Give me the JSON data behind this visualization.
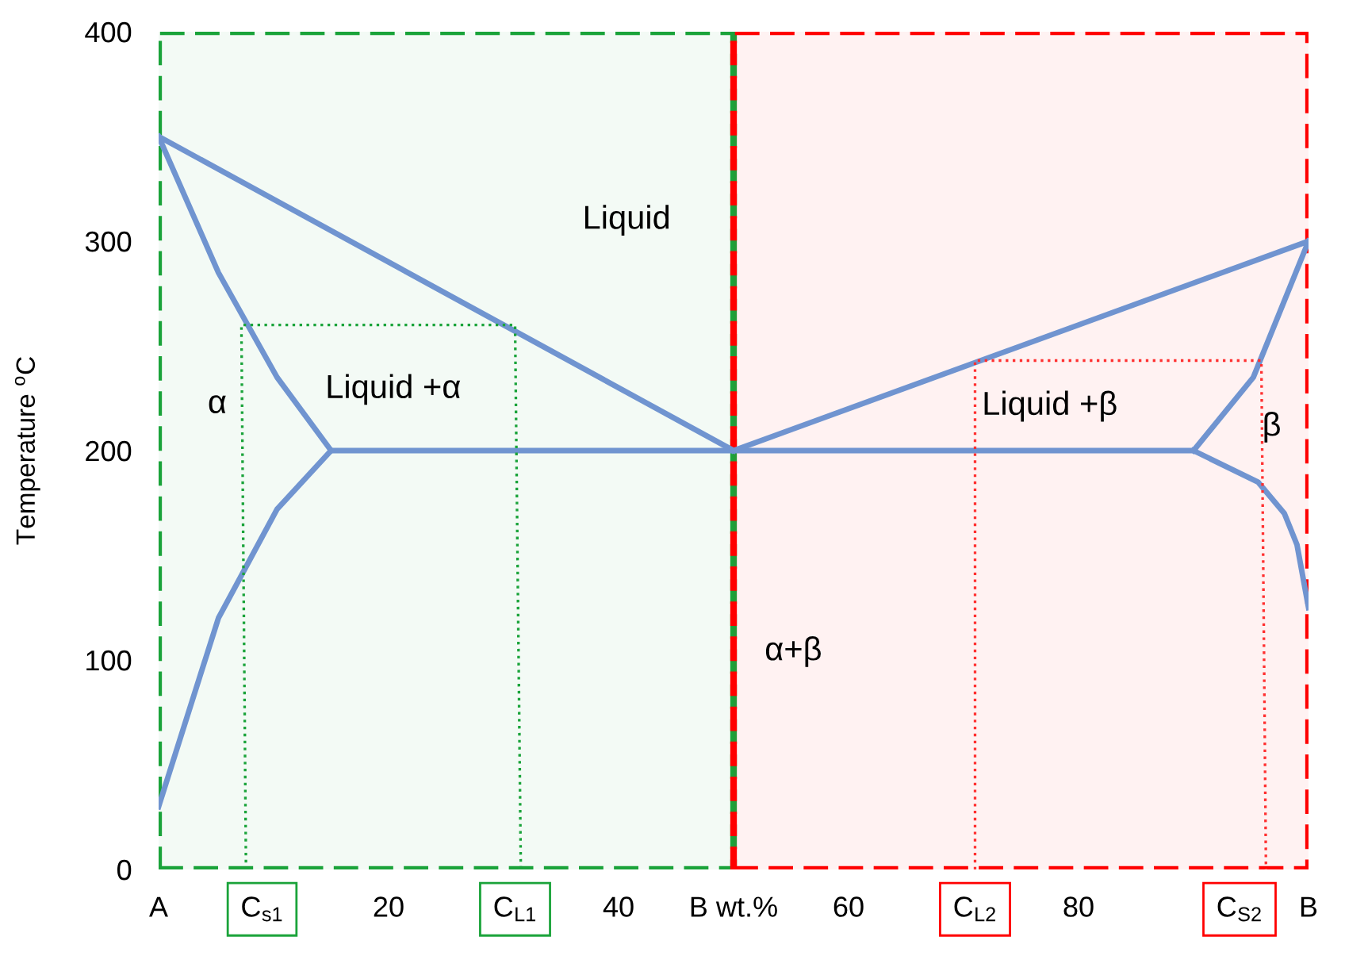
{
  "chart_data": {
    "type": "line",
    "ylabel": "Temperature $^{o}$C",
    "xlim": [
      0,
      100
    ],
    "ylim": [
      0,
      400
    ],
    "xticks": [
      {
        "value": 0,
        "label": "A"
      },
      {
        "value": 9,
        "label": "C$_{s1}$"
      },
      20,
      {
        "value": 31,
        "label": "C$_{L1}$"
      },
      40,
      {
        "value": 50,
        "label": "B wt.%"
      },
      60,
      {
        "value": 71,
        "label": "C$_{L2}$"
      },
      80,
      {
        "value": 94,
        "label": "C$_{S2}$"
      },
      {
        "value": 100,
        "label": "B"
      }
    ],
    "yticks": [
      0,
      100,
      200,
      300,
      400
    ],
    "series": [
      {
        "color": "#7094d0",
        "line_style": "solid",
        "x": [
          0,
          50
        ],
        "values": [
          350,
          200
        ]
      },
      {
        "color": "#7094d0",
        "line_style": "solid",
        "x": [
          0,
          5.2,
          10.3,
          15
        ],
        "values": [
          350,
          285,
          235,
          200
        ]
      },
      {
        "color": "#7094d0",
        "line_style": "solid",
        "x": [
          15,
          10.3,
          5.2,
          0
        ],
        "values": [
          200,
          172,
          120,
          30
        ]
      },
      {
        "color": "#7094d0",
        "line_style": "solid",
        "x": [
          15,
          90
        ],
        "values": [
          200,
          200
        ]
      },
      {
        "color": "#7094d0",
        "line_style": "solid",
        "x": [
          50,
          100
        ],
        "values": [
          200,
          300
        ]
      },
      {
        "color": "#7094d0",
        "line_style": "solid",
        "x": [
          90,
          95.2,
          100
        ],
        "values": [
          200,
          235,
          300
        ]
      },
      {
        "color": "#7094d0",
        "line_style": "solid",
        "x": [
          90,
          95.6,
          97.9,
          99,
          100
        ],
        "values": [
          200,
          185,
          170,
          155,
          125
        ]
      },
      {
        "color": "#1aa33a",
        "line_style": "dotted",
        "x": [
          7.6,
          7.2,
          31,
          31.5
        ],
        "values": [
          0,
          260,
          260,
          0
        ]
      },
      {
        "color": "#ff3030",
        "line_style": "dotted",
        "x": [
          71,
          71,
          95.9,
          96.3
        ],
        "values": [
          0,
          243,
          243,
          0
        ]
      }
    ],
    "bands": [
      {
        "axis": "x",
        "from": 0,
        "to": 50,
        "color": "#1aa33a"
      },
      {
        "axis": "x",
        "from": 50,
        "to": 100,
        "color": "#ff0000"
      }
    ],
    "annotations": [
      "Liquid",
      "Liquid +α",
      "α",
      "α+β",
      "Liquid +β",
      "β"
    ],
    "grid": false
  }
}
